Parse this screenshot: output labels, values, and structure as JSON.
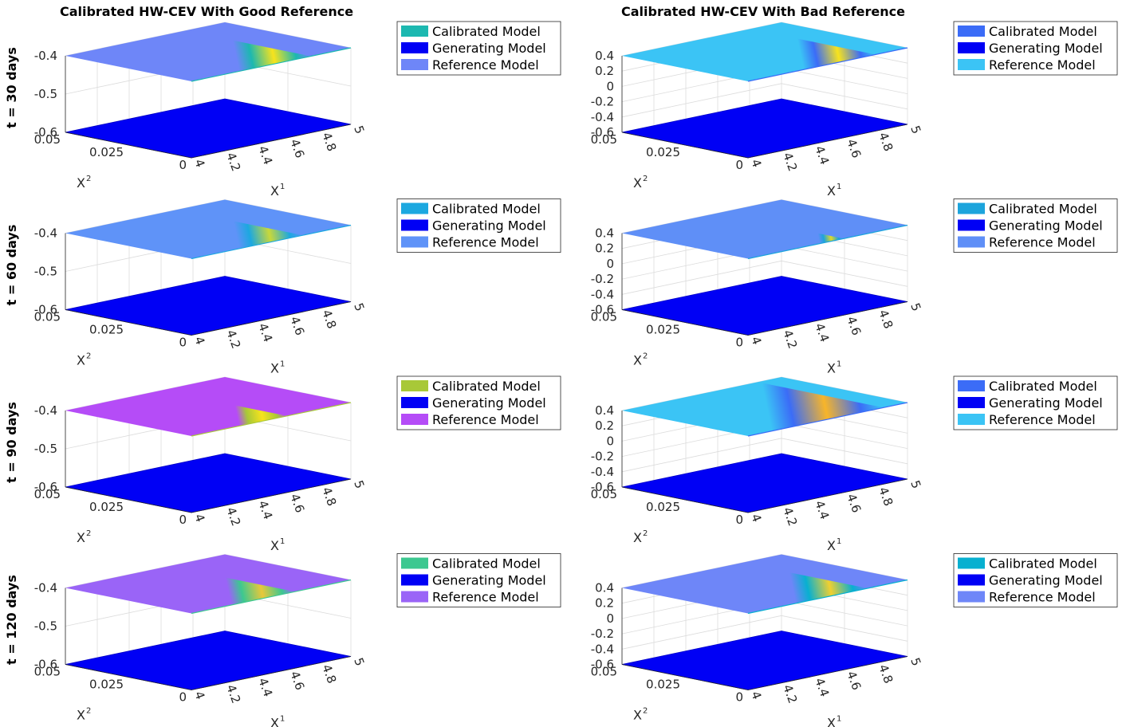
{
  "figure": {
    "column_titles": [
      "Calibrated HW-CEV With Good Reference",
      "Calibrated HW-CEV With Bad Reference"
    ],
    "row_labels": [
      "t = 30 days",
      "t = 60 days",
      "t = 90 days",
      "t = 120 days"
    ],
    "x1_label": "X",
    "x1_sup": "1",
    "x2_label": "X",
    "x2_sup": "2",
    "x1_ticks": [
      "4",
      "4.2",
      "4.4",
      "4.6",
      "4.8",
      "5"
    ],
    "x2_ticks": [
      "0",
      "0.025",
      "0.05"
    ],
    "z_ticks_good": [
      "-0.4",
      "-0.5",
      "-0.6"
    ],
    "z_ticks_bad": [
      "0.4",
      "0.2",
      "0",
      "-0.2",
      "-0.4",
      "-0.6"
    ],
    "legend_labels": [
      "Calibrated Model",
      "Generating Model",
      "Reference Model"
    ]
  },
  "chart_data": [
    {
      "type": "surface",
      "title": "Calibrated HW-CEV With Good Reference",
      "row_label": "t = 30 days",
      "xlabel": "X^1",
      "ylabel": "X^2",
      "xlim": [
        4,
        5
      ],
      "ylim": [
        0,
        0.05
      ],
      "zlim": [
        -0.6,
        -0.4
      ],
      "surfaces": [
        {
          "name": "Calibrated Model",
          "z": -0.4,
          "color": "#1cb8b0",
          "band_x1": [
            4.3,
            4.75
          ],
          "band_color": "#f7e31d"
        },
        {
          "name": "Generating Model",
          "z": -0.6,
          "color": "#0000f5"
        },
        {
          "name": "Reference Model",
          "z": -0.4,
          "color": "#6e86f8"
        }
      ]
    },
    {
      "type": "surface",
      "title": "Calibrated HW-CEV With Bad Reference",
      "row_label": "t = 30 days",
      "xlabel": "X^1",
      "ylabel": "X^2",
      "xlim": [
        4,
        5
      ],
      "ylim": [
        0,
        0.05
      ],
      "zlim": [
        -0.6,
        0.4
      ],
      "surfaces": [
        {
          "name": "Calibrated Model",
          "z": 0.4,
          "color": "#3b6cf7",
          "band_x1": [
            4.35,
            4.8
          ],
          "band_color": "#f7e31d"
        },
        {
          "name": "Generating Model",
          "z": -0.6,
          "color": "#0000f5"
        },
        {
          "name": "Reference Model",
          "z": 0.4,
          "color": "#3bc4f5"
        }
      ]
    },
    {
      "type": "surface",
      "title": "Calibrated HW-CEV With Good Reference",
      "row_label": "t = 60 days",
      "xlabel": "X^1",
      "ylabel": "X^2",
      "xlim": [
        4,
        5
      ],
      "ylim": [
        0,
        0.05
      ],
      "zlim": [
        -0.6,
        -0.4
      ],
      "surfaces": [
        {
          "name": "Calibrated Model",
          "z": -0.4,
          "color": "#1ca8e0",
          "band_x1": [
            4.3,
            4.7
          ],
          "band_color": "#c8d83a"
        },
        {
          "name": "Generating Model",
          "z": -0.6,
          "color": "#0000f5"
        },
        {
          "name": "Reference Model",
          "z": -0.4,
          "color": "#5f93f8"
        }
      ]
    },
    {
      "type": "surface",
      "title": "Calibrated HW-CEV With Bad Reference",
      "row_label": "t = 60 days",
      "xlabel": "X^1",
      "ylabel": "X^2",
      "xlim": [
        4,
        5
      ],
      "ylim": [
        0,
        0.05
      ],
      "zlim": [
        -0.6,
        0.4
      ],
      "surfaces": [
        {
          "name": "Calibrated Model",
          "z": 0.4,
          "color": "#1ca4dc",
          "band_x1": [
            4.45,
            4.6
          ],
          "band_color": "#e0d82a"
        },
        {
          "name": "Generating Model",
          "z": -0.6,
          "color": "#0000f5"
        },
        {
          "name": "Reference Model",
          "z": 0.4,
          "color": "#5f8ff7"
        }
      ]
    },
    {
      "type": "surface",
      "title": "Calibrated HW-CEV With Good Reference",
      "row_label": "t = 90 days",
      "xlabel": "X^1",
      "ylabel": "X^2",
      "xlim": [
        4,
        5
      ],
      "ylim": [
        0,
        0.05
      ],
      "zlim": [
        -0.6,
        -0.4
      ],
      "surfaces": [
        {
          "name": "Calibrated Model",
          "z": -0.4,
          "color": "#a8c838",
          "band_x1": [
            4.3,
            4.6
          ],
          "band_color": "#f7e31d"
        },
        {
          "name": "Generating Model",
          "z": -0.6,
          "color": "#0000f5"
        },
        {
          "name": "Reference Model",
          "z": -0.4,
          "color": "#b54cf7"
        }
      ]
    },
    {
      "type": "surface",
      "title": "Calibrated HW-CEV With Bad Reference",
      "row_label": "t = 90 days",
      "xlabel": "X^1",
      "ylabel": "X^2",
      "xlim": [
        4,
        5
      ],
      "ylim": [
        0,
        0.05
      ],
      "zlim": [
        -0.6,
        0.4
      ],
      "surfaces": [
        {
          "name": "Calibrated Model",
          "z": 0.4,
          "color": "#3b6cf7",
          "band_x1": [
            4.15,
            4.85
          ],
          "band_color": "#f7b52a"
        },
        {
          "name": "Generating Model",
          "z": -0.6,
          "color": "#0000f5"
        },
        {
          "name": "Reference Model",
          "z": 0.4,
          "color": "#3bc4f5"
        }
      ]
    },
    {
      "type": "surface",
      "title": "Calibrated HW-CEV With Good Reference",
      "row_label": "t = 120 days",
      "xlabel": "X^1",
      "ylabel": "X^2",
      "xlim": [
        4,
        5
      ],
      "ylim": [
        0,
        0.05
      ],
      "zlim": [
        -0.6,
        -0.4
      ],
      "surfaces": [
        {
          "name": "Calibrated Model",
          "z": -0.4,
          "color": "#3cc890",
          "band_x1": [
            4.25,
            4.65
          ],
          "band_color": "#e8c83a"
        },
        {
          "name": "Generating Model",
          "z": -0.6,
          "color": "#0000f5"
        },
        {
          "name": "Reference Model",
          "z": -0.4,
          "color": "#9a64f7"
        }
      ]
    },
    {
      "type": "surface",
      "title": "Calibrated HW-CEV With Bad Reference",
      "row_label": "t = 120 days",
      "xlabel": "X^1",
      "ylabel": "X^2",
      "xlim": [
        4,
        5
      ],
      "ylim": [
        0,
        0.05
      ],
      "zlim": [
        -0.6,
        0.4
      ],
      "surfaces": [
        {
          "name": "Calibrated Model",
          "z": 0.4,
          "color": "#08b0d0",
          "band_x1": [
            4.3,
            4.75
          ],
          "band_color": "#f0d030"
        },
        {
          "name": "Generating Model",
          "z": -0.6,
          "color": "#0000f5"
        },
        {
          "name": "Reference Model",
          "z": 0.4,
          "color": "#6e86f8"
        }
      ]
    }
  ]
}
